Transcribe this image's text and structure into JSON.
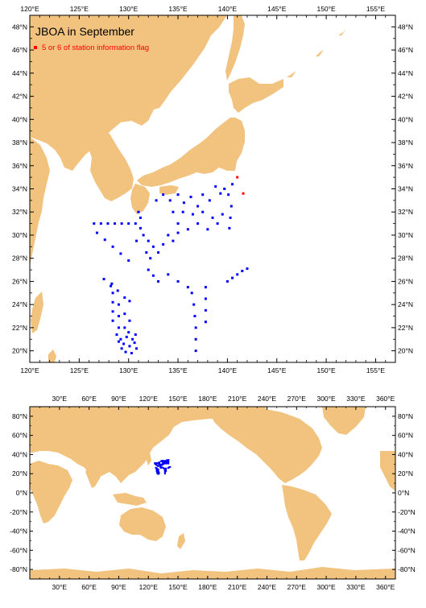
{
  "colors": {
    "land": "#f2c27f",
    "ocean": "#ffffff",
    "station": "#0000ff",
    "flag": "#ff0000"
  },
  "regional_map": {
    "title": "JBOA in September",
    "legend": "5 or 6 of station information flag",
    "lon_ticks": [
      "120°E",
      "125°E",
      "130°E",
      "135°E",
      "140°E",
      "145°E",
      "150°E",
      "155°E"
    ],
    "lat_ticks": [
      "20°N",
      "22°N",
      "24°N",
      "26°N",
      "28°N",
      "30°N",
      "32°N",
      "34°N",
      "36°N",
      "38°N",
      "40°N",
      "42°N",
      "44°N",
      "46°N",
      "48°N"
    ]
  },
  "world_map": {
    "lon_ticks": [
      "30°E",
      "60°E",
      "90°E",
      "120°E",
      "150°E",
      "180°E",
      "210°E",
      "240°E",
      "270°E",
      "300°E",
      "330°E",
      "360°E"
    ],
    "lat_ticks": [
      "-80°N",
      "-60°N",
      "-40°N",
      "-20°N",
      "0°N",
      "20°N",
      "40°N",
      "60°N",
      "80°N"
    ]
  },
  "chart_data": {
    "type": "scatter",
    "x_unit": "degrees longitude E",
    "y_unit": "degrees latitude N",
    "xlim": [
      120,
      157
    ],
    "ylim": [
      19,
      49
    ],
    "series": [
      {
        "points": [
          [
            126.5,
            31
          ],
          [
            127.2,
            31
          ],
          [
            127.9,
            31
          ],
          [
            128.6,
            31
          ],
          [
            129.3,
            31
          ],
          [
            130,
            31
          ],
          [
            130.7,
            31
          ],
          [
            126.8,
            30.2
          ],
          [
            127.6,
            29.6
          ],
          [
            128.4,
            29
          ],
          [
            129.2,
            28.4
          ],
          [
            130,
            27.8
          ],
          [
            130.8,
            29.5
          ],
          [
            131.2,
            30.6
          ],
          [
            127.5,
            26.2
          ],
          [
            128.2,
            25.6
          ],
          [
            128.9,
            25.2
          ],
          [
            129.6,
            24.6
          ],
          [
            130.1,
            24.3
          ],
          [
            128.3,
            25.8
          ],
          [
            128.4,
            25
          ],
          [
            128.4,
            24.2
          ],
          [
            128.4,
            23.4
          ],
          [
            128.4,
            22.6
          ],
          [
            129,
            24
          ],
          [
            129,
            23
          ],
          [
            129,
            22
          ],
          [
            129.6,
            23.2
          ],
          [
            129.6,
            22
          ],
          [
            130.1,
            22.6
          ],
          [
            129.2,
            21
          ],
          [
            129.5,
            20.6
          ],
          [
            129.8,
            21.2
          ],
          [
            130.1,
            20.4
          ],
          [
            130.4,
            21
          ],
          [
            130.6,
            20.7
          ],
          [
            129,
            20.8
          ],
          [
            130,
            21.6
          ],
          [
            129.7,
            19.9
          ],
          [
            130.3,
            19.8
          ],
          [
            129.3,
            20.2
          ],
          [
            130.8,
            20.2
          ],
          [
            128.8,
            21.4
          ],
          [
            130.7,
            21.4
          ],
          [
            131.5,
            30
          ],
          [
            132,
            29.5
          ],
          [
            132.5,
            29
          ],
          [
            131.8,
            28.5
          ],
          [
            132.2,
            28
          ],
          [
            133,
            28.5
          ],
          [
            133.5,
            29.2
          ],
          [
            134,
            30
          ],
          [
            134.5,
            29.5
          ],
          [
            135,
            30.2
          ],
          [
            132,
            27
          ],
          [
            132.5,
            26.5
          ],
          [
            133,
            26
          ],
          [
            134,
            26.6
          ],
          [
            135,
            26
          ],
          [
            132.8,
            33
          ],
          [
            133.5,
            33.5
          ],
          [
            134.2,
            33
          ],
          [
            135,
            33.5
          ],
          [
            135.6,
            32.8
          ],
          [
            136.3,
            33.3
          ],
          [
            137,
            32.5
          ],
          [
            137.5,
            33.5
          ],
          [
            138.2,
            33
          ],
          [
            138.8,
            34.2
          ],
          [
            139.3,
            33.6
          ],
          [
            139.7,
            34
          ],
          [
            134.5,
            32
          ],
          [
            135.5,
            32
          ],
          [
            136.5,
            31.8
          ],
          [
            137.5,
            32
          ],
          [
            138.5,
            31.5
          ],
          [
            139.5,
            31.8
          ],
          [
            135,
            31
          ],
          [
            136,
            30.5
          ],
          [
            137,
            31
          ],
          [
            138,
            30.5
          ],
          [
            139,
            31
          ],
          [
            140.2,
            30.6
          ],
          [
            140.3,
            31.5
          ],
          [
            140.4,
            32.5
          ],
          [
            140.1,
            33.5
          ],
          [
            140.5,
            34.4
          ],
          [
            136,
            25.5
          ],
          [
            136.4,
            25
          ],
          [
            136.6,
            24
          ],
          [
            136.7,
            23
          ],
          [
            136.8,
            22
          ],
          [
            136.8,
            21
          ],
          [
            136.8,
            20
          ],
          [
            137.8,
            25.5
          ],
          [
            137.8,
            24.5
          ],
          [
            137.8,
            23.5
          ],
          [
            137.8,
            22.5
          ],
          [
            140,
            26
          ],
          [
            140.5,
            26.3
          ],
          [
            141,
            26.6
          ],
          [
            141.5,
            26.9
          ],
          [
            142,
            27.1
          ],
          [
            131,
            32
          ],
          [
            131.2,
            31.5
          ]
        ]
      },
      {
        "name": "5 or 6 of station information flag",
        "points": [
          [
            141,
            35
          ],
          [
            141.6,
            33.6
          ]
        ]
      }
    ]
  }
}
